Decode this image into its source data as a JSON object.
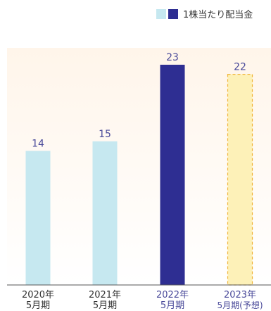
{
  "chart_data": {
    "type": "bar",
    "legend": {
      "label": "1株当たり配当金",
      "swatch_colors": [
        "#c6e8f0",
        "#2e2e92"
      ],
      "placement": "top-right"
    },
    "categories": [
      {
        "line1": "2020年",
        "line2": "5月期",
        "style": "actual"
      },
      {
        "line1": "2021年",
        "line2": "5月期",
        "style": "actual"
      },
      {
        "line1": "2022年",
        "line2": "5月期",
        "style": "highlight"
      },
      {
        "line1": "2023年",
        "line2": "5月期(予想)",
        "style": "forecast"
      }
    ],
    "values": [
      14,
      15,
      23,
      22
    ],
    "value_labels": [
      "14",
      "15",
      "23",
      "22"
    ],
    "ylim": [
      0,
      23
    ],
    "grid": false,
    "colors": {
      "actual": "#c6e8f0",
      "highlight": "#2e2e92",
      "forecast_fill": "#fdf1b8",
      "forecast_stroke": "#f0b53a",
      "background_top": "#fff5ea",
      "background_bottom": "#ffffff",
      "text": "#333333",
      "value_text": "#4a4a9a",
      "axis": "#555555"
    }
  }
}
